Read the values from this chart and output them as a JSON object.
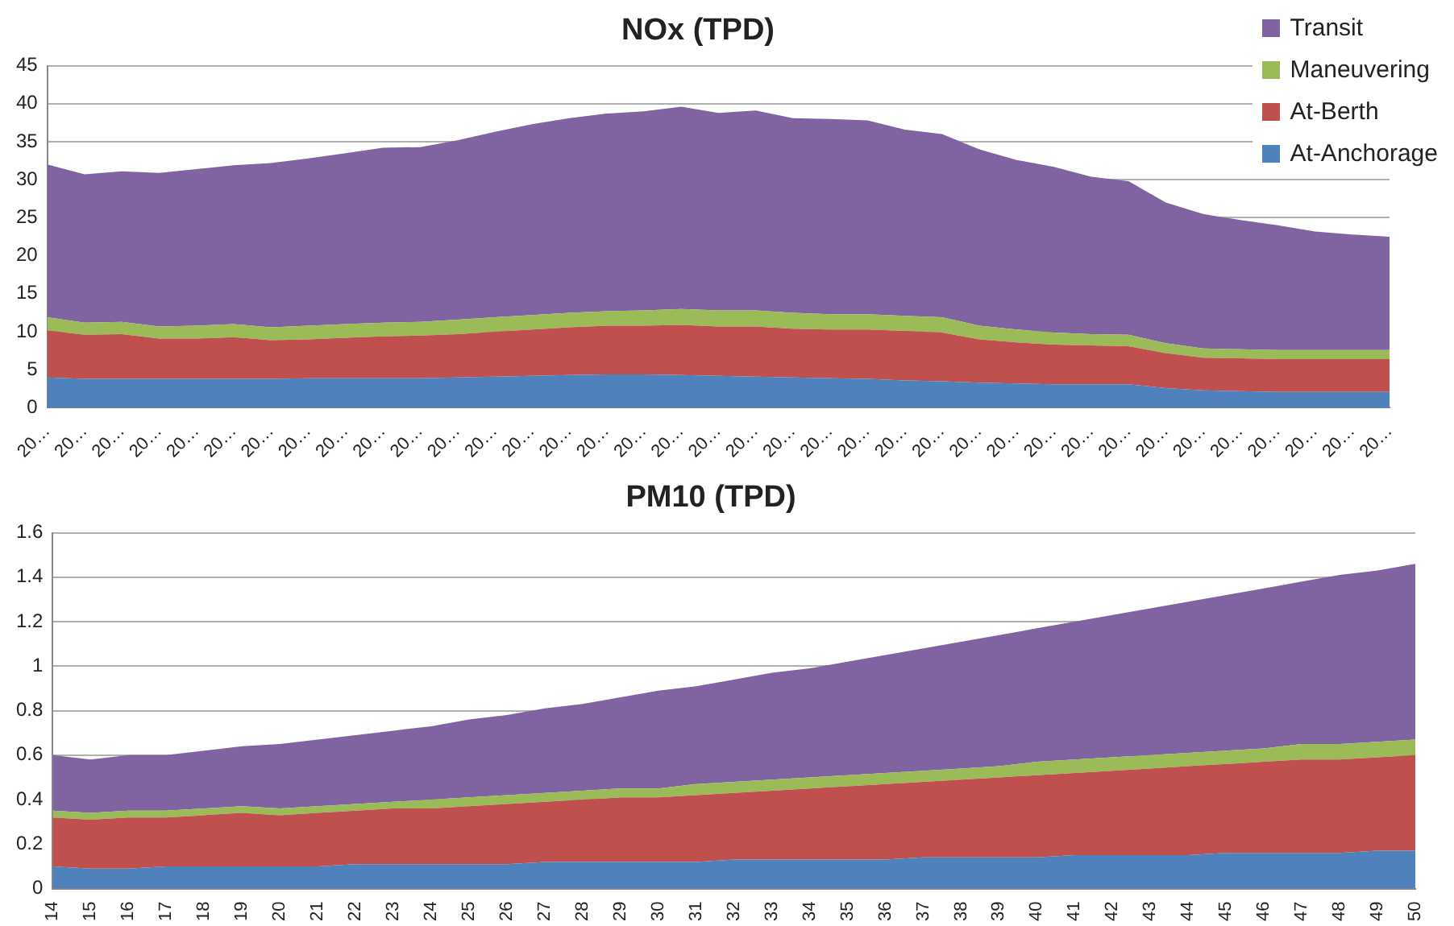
{
  "chart_data": [
    {
      "type": "area",
      "title": "NOx (TPD)",
      "stacked": true,
      "grid": "y",
      "legend": "top right",
      "categories": [
        "20…",
        "20…",
        "20…",
        "20…",
        "20…",
        "20…",
        "20…",
        "20…",
        "20…",
        "20…",
        "20…",
        "20…",
        "20…",
        "20…",
        "20…",
        "20…",
        "20…",
        "20…",
        "20…",
        "20…",
        "20…",
        "20…",
        "20…",
        "20…",
        "20…",
        "20…",
        "20…",
        "20…",
        "20…",
        "20…",
        "20…",
        "20…",
        "20…",
        "20…",
        "20…",
        "20…",
        "20…"
      ],
      "ylim": [
        0,
        45
      ],
      "yticks": [
        0,
        5,
        10,
        15,
        20,
        25,
        30,
        35,
        40,
        45
      ],
      "series": [
        {
          "name": "At-Anchorage",
          "color": "#4f81bd",
          "values": [
            4.0,
            3.8,
            3.8,
            3.8,
            3.8,
            3.8,
            3.8,
            3.9,
            3.9,
            3.9,
            3.9,
            4.0,
            4.1,
            4.2,
            4.3,
            4.4,
            4.4,
            4.3,
            4.2,
            4.1,
            4.0,
            3.9,
            3.8,
            3.6,
            3.5,
            3.3,
            3.2,
            3.1,
            3.1,
            3.1,
            2.6,
            2.3,
            2.2,
            2.1,
            2.1,
            2.1,
            2.1
          ]
        },
        {
          "name": "At-Berth",
          "color": "#c0504d",
          "values": [
            6.2,
            5.8,
            5.9,
            5.3,
            5.3,
            5.5,
            5.1,
            5.1,
            5.3,
            5.5,
            5.6,
            5.7,
            5.9,
            6.1,
            6.3,
            6.4,
            6.4,
            6.6,
            6.5,
            6.6,
            6.4,
            6.4,
            6.5,
            6.5,
            6.4,
            5.7,
            5.4,
            5.2,
            5.1,
            5.0,
            4.6,
            4.3,
            4.3,
            4.3,
            4.3,
            4.3,
            4.3
          ]
        },
        {
          "name": "Maneuvering",
          "color": "#9bbb59",
          "values": [
            1.7,
            1.6,
            1.6,
            1.6,
            1.7,
            1.7,
            1.7,
            1.8,
            1.8,
            1.8,
            1.8,
            1.9,
            1.9,
            1.9,
            1.9,
            1.9,
            2.0,
            2.1,
            2.1,
            2.1,
            2.1,
            2.0,
            2.0,
            2.0,
            2.0,
            1.8,
            1.7,
            1.6,
            1.5,
            1.5,
            1.3,
            1.2,
            1.2,
            1.2,
            1.2,
            1.2,
            1.2
          ]
        },
        {
          "name": "Transit",
          "color": "#8064a2",
          "values": [
            20.1,
            19.5,
            19.8,
            20.2,
            20.6,
            20.9,
            21.6,
            22.0,
            22.5,
            23.0,
            23.0,
            23.6,
            24.4,
            25.1,
            25.6,
            26.0,
            26.2,
            26.6,
            26.0,
            26.3,
            25.6,
            25.7,
            25.5,
            24.5,
            24.1,
            23.2,
            22.3,
            21.8,
            20.7,
            20.2,
            18.5,
            17.7,
            17.0,
            16.4,
            15.6,
            15.2,
            14.9
          ]
        }
      ]
    },
    {
      "type": "area",
      "title": "PM10 (TPD)",
      "stacked": true,
      "grid": "y",
      "categories": [
        "14",
        "15",
        "16",
        "17",
        "18",
        "19",
        "20",
        "21",
        "22",
        "23",
        "24",
        "25",
        "26",
        "27",
        "28",
        "29",
        "30",
        "31",
        "32",
        "33",
        "34",
        "35",
        "36",
        "37",
        "38",
        "39",
        "40",
        "41",
        "42",
        "43",
        "44",
        "45",
        "46",
        "47",
        "48",
        "49",
        "50"
      ],
      "ylim": [
        0,
        1.6
      ],
      "yticks": [
        0,
        0.2,
        0.4,
        0.6,
        0.8,
        1,
        1.2,
        1.4,
        1.6
      ],
      "series": [
        {
          "color": "#4f81bd",
          "values": [
            0.1,
            0.09,
            0.09,
            0.1,
            0.1,
            0.1,
            0.1,
            0.1,
            0.11,
            0.11,
            0.11,
            0.11,
            0.11,
            0.12,
            0.12,
            0.12,
            0.12,
            0.12,
            0.13,
            0.13,
            0.13,
            0.13,
            0.13,
            0.14,
            0.14,
            0.14,
            0.14,
            0.15,
            0.15,
            0.15,
            0.15,
            0.16,
            0.16,
            0.16,
            0.16,
            0.17,
            0.17
          ]
        },
        {
          "color": "#c0504d",
          "values": [
            0.22,
            0.22,
            0.23,
            0.22,
            0.23,
            0.24,
            0.23,
            0.24,
            0.24,
            0.25,
            0.25,
            0.26,
            0.27,
            0.27,
            0.28,
            0.29,
            0.29,
            0.3,
            0.3,
            0.31,
            0.32,
            0.33,
            0.34,
            0.34,
            0.35,
            0.36,
            0.37,
            0.37,
            0.38,
            0.39,
            0.4,
            0.4,
            0.41,
            0.42,
            0.42,
            0.42,
            0.43
          ]
        },
        {
          "color": "#9bbb59",
          "values": [
            0.03,
            0.03,
            0.03,
            0.03,
            0.03,
            0.03,
            0.03,
            0.03,
            0.03,
            0.03,
            0.04,
            0.04,
            0.04,
            0.04,
            0.04,
            0.04,
            0.04,
            0.05,
            0.05,
            0.05,
            0.05,
            0.05,
            0.05,
            0.05,
            0.05,
            0.05,
            0.06,
            0.06,
            0.06,
            0.06,
            0.06,
            0.06,
            0.06,
            0.07,
            0.07,
            0.07,
            0.07
          ]
        },
        {
          "color": "#8064a2",
          "values": [
            0.25,
            0.24,
            0.25,
            0.25,
            0.26,
            0.27,
            0.29,
            0.3,
            0.31,
            0.32,
            0.33,
            0.35,
            0.36,
            0.38,
            0.39,
            0.41,
            0.44,
            0.44,
            0.46,
            0.48,
            0.49,
            0.51,
            0.53,
            0.55,
            0.57,
            0.59,
            0.6,
            0.62,
            0.64,
            0.66,
            0.68,
            0.7,
            0.72,
            0.73,
            0.76,
            0.77,
            0.79
          ]
        }
      ]
    }
  ]
}
